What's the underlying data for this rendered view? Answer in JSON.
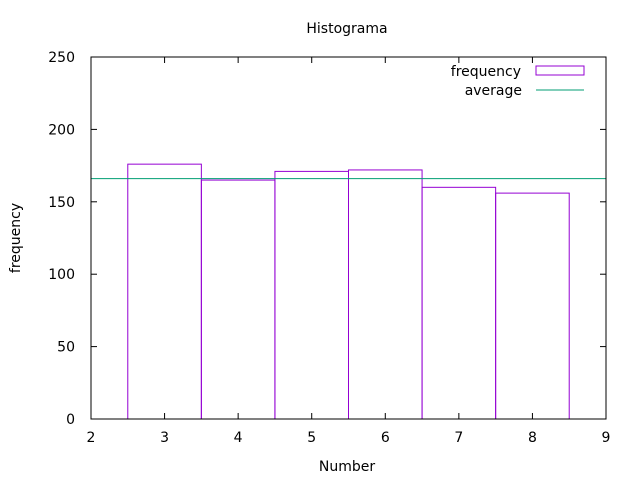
{
  "chart_data": {
    "type": "bar",
    "title": "Histograma",
    "xlabel": "Number",
    "ylabel": "frequency",
    "xlim": [
      2,
      9
    ],
    "ylim": [
      0,
      250
    ],
    "xticks": [
      "2",
      "3",
      "4",
      "5",
      "6",
      "7",
      "8",
      "9"
    ],
    "yticks": [
      "0",
      "50",
      "100",
      "150",
      "200",
      "250"
    ],
    "bar_width": 1,
    "series": [
      {
        "name": "frequency",
        "kind": "histogram",
        "color": "#9400d3",
        "x": [
          3,
          4,
          5,
          6,
          7,
          8
        ],
        "values": [
          176,
          165,
          171,
          172,
          160,
          156
        ]
      },
      {
        "name": "average",
        "kind": "horizontal-line",
        "color": "#009e73",
        "value": 166
      }
    ],
    "legend": {
      "position": "top-right"
    },
    "grid": false
  }
}
